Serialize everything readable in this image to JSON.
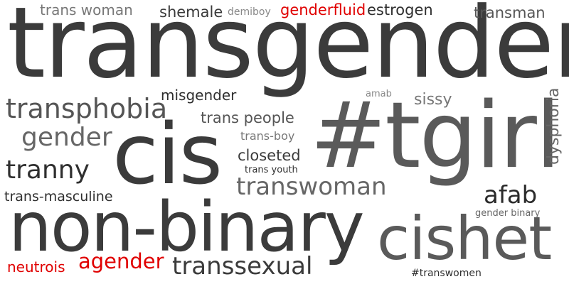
{
  "colors": {
    "dark": "#3b3b3b",
    "mid": "#5a5a5a",
    "gray": "#666666",
    "light": "#777777",
    "accent_red": "#e00000"
  },
  "words": [
    {
      "id": "transgender",
      "text": "transgender",
      "color": "#3b3b3b"
    },
    {
      "id": "tgirl",
      "text": "#tgirl",
      "color": "#5a5a5a"
    },
    {
      "id": "cis",
      "text": "cis",
      "color": "#3b3b3b"
    },
    {
      "id": "non-binary",
      "text": "non-binary",
      "color": "#3b3b3b"
    },
    {
      "id": "cishet",
      "text": "cishet",
      "color": "#5a5a5a"
    },
    {
      "id": "transphobia",
      "text": "transphobia",
      "color": "#555555"
    },
    {
      "id": "gender",
      "text": "gender",
      "color": "#666666"
    },
    {
      "id": "tranny",
      "text": "tranny",
      "color": "#2f2f2f"
    },
    {
      "id": "transwoman",
      "text": "transwoman",
      "color": "#666666"
    },
    {
      "id": "afab",
      "text": "afab",
      "color": "#2b2b2b"
    },
    {
      "id": "transsexual",
      "text": "transsexual",
      "color": "#3b3b3b"
    },
    {
      "id": "trans-woman",
      "text": "trans woman",
      "color": "#777777"
    },
    {
      "id": "shemale",
      "text": "shemale",
      "color": "#3b3b3b"
    },
    {
      "id": "demiboy",
      "text": "demiboy",
      "color": "#888888"
    },
    {
      "id": "genderfluid",
      "text": "genderfluid",
      "color": "#e00000"
    },
    {
      "id": "estrogen",
      "text": "estrogen",
      "color": "#2f2f2f"
    },
    {
      "id": "transman",
      "text": "transman",
      "color": "#555555"
    },
    {
      "id": "misgender",
      "text": "misgender",
      "color": "#2f2f2f"
    },
    {
      "id": "trans-people",
      "text": "trans people",
      "color": "#555555"
    },
    {
      "id": "trans-boy",
      "text": "trans-boy",
      "color": "#777777"
    },
    {
      "id": "closeted",
      "text": "closeted",
      "color": "#3b3b3b"
    },
    {
      "id": "trans-youth",
      "text": "trans youth",
      "color": "#2f2f2f"
    },
    {
      "id": "amab",
      "text": "amab",
      "color": "#888888"
    },
    {
      "id": "sissy",
      "text": "sissy",
      "color": "#777777"
    },
    {
      "id": "dysphoria",
      "text": "dysphoria",
      "color": "#666666"
    },
    {
      "id": "trans-masculine",
      "text": "trans-masculine",
      "color": "#2f2f2f"
    },
    {
      "id": "gender-binary",
      "text": "gender binary",
      "color": "#666666"
    },
    {
      "id": "neutrois",
      "text": "neutrois",
      "color": "#e00000"
    },
    {
      "id": "agender",
      "text": "agender",
      "color": "#e00000"
    },
    {
      "id": "hashtag-transwomen",
      "text": "#transwomen",
      "color": "#2f2f2f"
    }
  ]
}
